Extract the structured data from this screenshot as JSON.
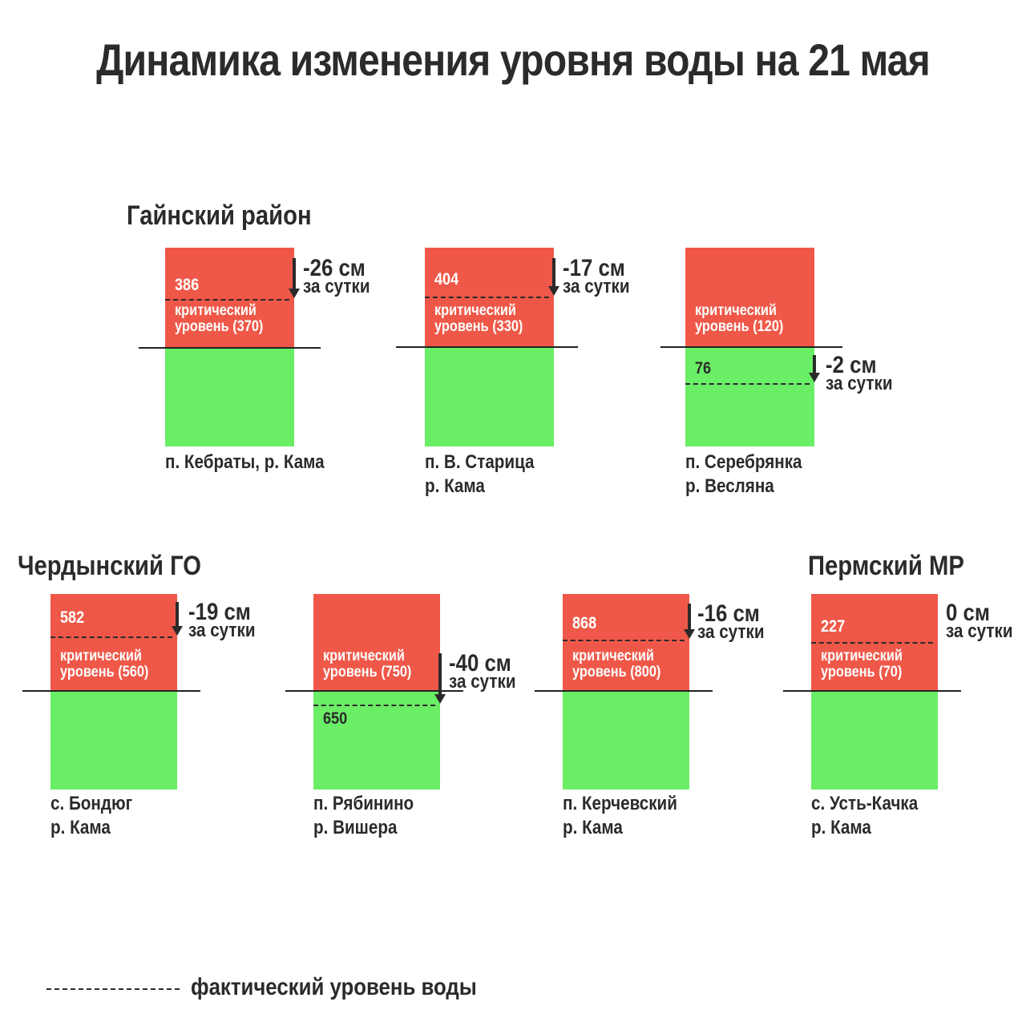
{
  "title": "Динамика изменения уровня воды на 21 мая",
  "regions": [
    "Гайнский район",
    "Чердынский ГО",
    "Пермский МР"
  ],
  "critical_prefix": "критический",
  "critical_word": "уровень",
  "per_day": "за сутки",
  "legend_label": "фактический уровень воды",
  "colors": {
    "above_critical": "#EF5848",
    "below_critical": "#6AEE66"
  },
  "chart_data": {
    "type": "bar",
    "unit": "см",
    "stations": [
      {
        "region": "Гайнский район",
        "place_line1": "п. Кебраты, р. Кама",
        "place_line2": "",
        "critical": 370,
        "actual": 386,
        "change": "-26 см"
      },
      {
        "region": "Гайнский район",
        "place_line1": "п. В. Старица",
        "place_line2": "р. Кама",
        "critical": 330,
        "actual": 404,
        "change": "-17 см"
      },
      {
        "region": "Гайнский район",
        "place_line1": "п. Серебрянка",
        "place_line2": "р. Весляна",
        "critical": 120,
        "actual": 76,
        "change": "-2 см"
      },
      {
        "region": "Чердынский ГО",
        "place_line1": "с. Бондюг",
        "place_line2": "р. Кама",
        "critical": 560,
        "actual": 582,
        "change": "-19 см"
      },
      {
        "region": "Чердынский ГО",
        "place_line1": "п. Рябинино",
        "place_line2": "р. Вишера",
        "critical": 750,
        "actual": 650,
        "change": "-40 см"
      },
      {
        "region": "Чердынский ГО",
        "place_line1": "п. Керчевский",
        "place_line2": "р. Кама",
        "critical": 800,
        "actual": 868,
        "change": "-16 см"
      },
      {
        "region": "Пермский МР",
        "place_line1": "с. Усть-Качка",
        "place_line2": "р. Кама",
        "critical": 70,
        "actual": 227,
        "change": "0 см"
      }
    ]
  }
}
